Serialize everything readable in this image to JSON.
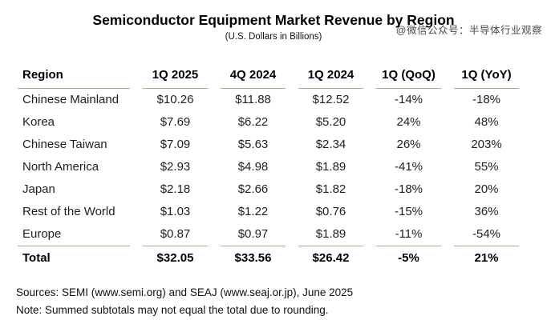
{
  "watermark": "@微信公众号：半导体行业观察",
  "header": {
    "title": "Semiconductor Equipment Market Revenue by Region",
    "subtitle": "(U.S. Dollars in Billions)"
  },
  "table": {
    "columns": [
      "Region",
      "1Q 2025",
      "4Q 2024",
      "1Q 2024",
      "1Q (QoQ)",
      "1Q (YoY)"
    ],
    "rows": [
      [
        "Chinese Mainland",
        "$10.26",
        "$11.88",
        "$12.52",
        "-14%",
        "-18%"
      ],
      [
        "Korea",
        "$7.69",
        "$6.22",
        "$5.20",
        "24%",
        "48%"
      ],
      [
        "Chinese Taiwan",
        "$7.09",
        "$5.63",
        "$2.34",
        "26%",
        "203%"
      ],
      [
        "North America",
        "$2.93",
        "$4.98",
        "$1.89",
        "-41%",
        "55%"
      ],
      [
        "Japan",
        "$2.18",
        "$2.66",
        "$1.82",
        "-18%",
        "20%"
      ],
      [
        "Rest of the World",
        "$1.03",
        "$1.22",
        "$0.76",
        "-15%",
        "36%"
      ],
      [
        "Europe",
        "$0.87",
        "$0.97",
        "$1.89",
        "-11%",
        "-54%"
      ]
    ],
    "total_row": [
      "Total",
      "$32.05",
      "$33.56",
      "$26.42",
      "-5%",
      "21%"
    ]
  },
  "footer": {
    "sources": "Sources: SEMI (www.semi.org) and SEAJ (www.seaj.or.jp), June 2025",
    "note": "Note: Summed subtotals may not equal the total due to rounding."
  },
  "colors": {
    "rule_green": "#9fb284",
    "text": "#1f1f1f",
    "watermark_gray": "#4a4a4a",
    "background": "#ffffff"
  },
  "chart_data": {
    "type": "table",
    "title": "Semiconductor Equipment Market Revenue by Region",
    "subtitle": "(U.S. Dollars in Billions)",
    "unit": "USD billions",
    "categories": [
      "Chinese Mainland",
      "Korea",
      "Chinese Taiwan",
      "North America",
      "Japan",
      "Rest of the World",
      "Europe"
    ],
    "series": [
      {
        "name": "1Q 2025",
        "values": [
          10.26,
          7.69,
          7.09,
          2.93,
          2.18,
          1.03,
          0.87
        ],
        "total": 32.05
      },
      {
        "name": "4Q 2024",
        "values": [
          11.88,
          6.22,
          5.63,
          4.98,
          2.66,
          1.22,
          0.97
        ],
        "total": 33.56
      },
      {
        "name": "1Q 2024",
        "values": [
          12.52,
          5.2,
          2.34,
          1.89,
          1.82,
          0.76,
          1.89
        ],
        "total": 26.42
      },
      {
        "name": "1Q (QoQ) percent",
        "values": [
          -14,
          24,
          26,
          -41,
          -18,
          -15,
          -11
        ],
        "total": -5
      },
      {
        "name": "1Q (YoY) percent",
        "values": [
          -18,
          48,
          203,
          55,
          20,
          36,
          -54
        ],
        "total": 21
      }
    ],
    "annotations": [
      "Sources: SEMI (www.semi.org) and SEAJ (www.seaj.or.jp), June 2025",
      "Note: Summed subtotals may not equal the total due to rounding."
    ]
  }
}
